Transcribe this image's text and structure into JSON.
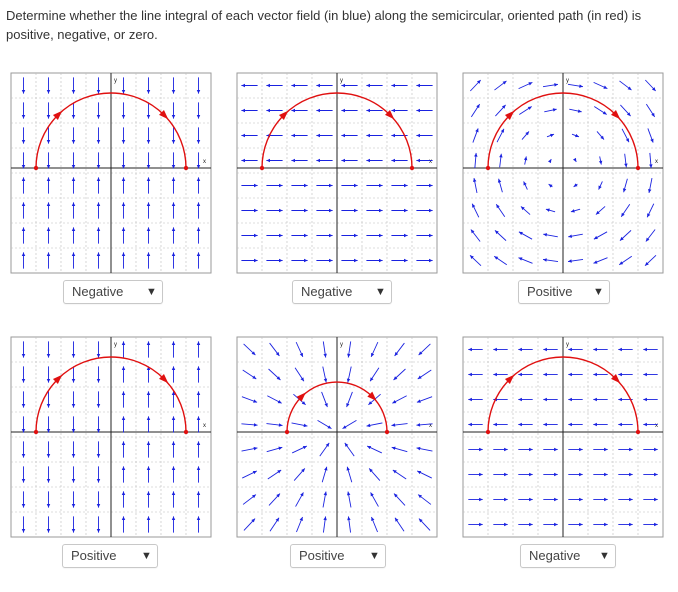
{
  "question": {
    "prompt": "Determine whether the line integral of each vector field (in blue) along the semicircular, oriented path (in red) is positive, negative, or zero."
  },
  "colors": {
    "field": "#1a22e0",
    "path": "#e01010",
    "grid": "#bcbcbc",
    "axis": "#222222"
  },
  "axis_labels": {
    "x": "x",
    "y": "y"
  },
  "panels": [
    {
      "id": "p1",
      "field": "vertical",
      "selected": "Negative"
    },
    {
      "id": "p2",
      "field": "horizontal",
      "selected": "Negative"
    },
    {
      "id": "p3",
      "field": "rotation",
      "selected": "Positive"
    },
    {
      "id": "p4",
      "field": "vertical-up",
      "selected": "Positive"
    },
    {
      "id": "p5",
      "field": "radial-in",
      "selected": "Positive"
    },
    {
      "id": "p6",
      "field": "horizontal-mixed",
      "selected": "Negative"
    }
  ]
}
